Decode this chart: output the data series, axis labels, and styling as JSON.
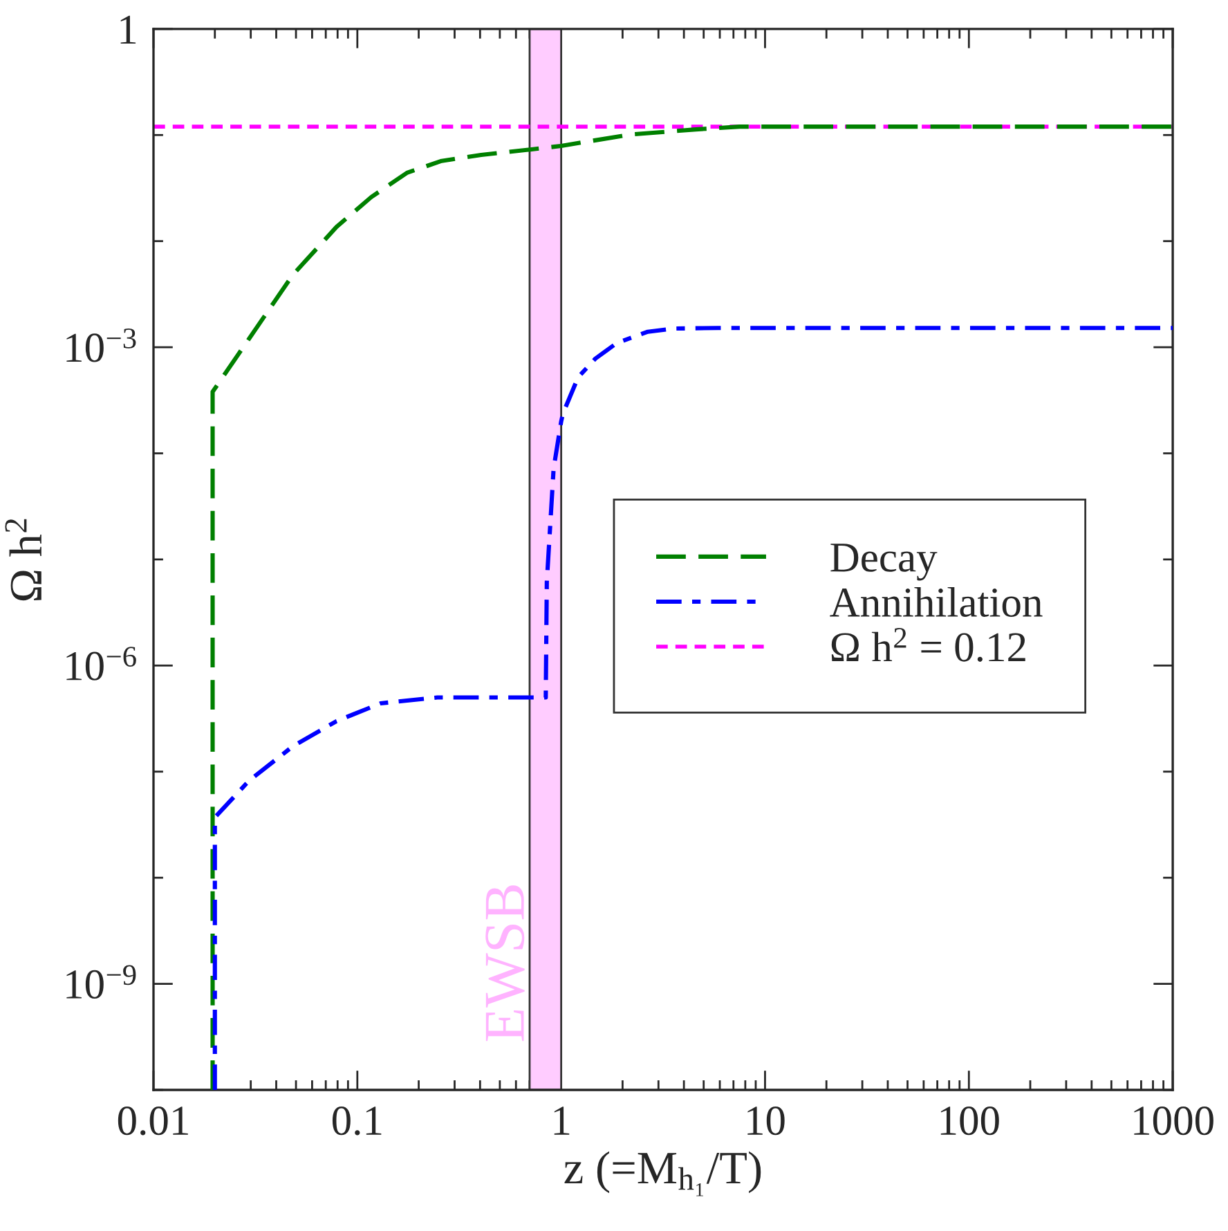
{
  "chart_data": {
    "type": "line",
    "xlabel": "z (=M$_{h₁}$/T)",
    "ylabel": "Ω h$^{2}$",
    "series": [
      {
        "name": "Decay",
        "color": "#008000",
        "line_style": "dashed",
        "x": [
          0.0195,
          0.0195,
          0.0294,
          0.0482,
          0.079,
          0.117,
          0.175,
          0.259,
          0.405,
          0.705,
          1.0,
          2.18,
          4.58,
          7.5,
          1000
        ],
        "values": [
          1e-10,
          0.00038,
          0.0012,
          0.0048,
          0.0136,
          0.026,
          0.044,
          0.057,
          0.065,
          0.073,
          0.079,
          0.101,
          0.113,
          0.12,
          0.12
        ]
      },
      {
        "name": "Annihilation",
        "color": "#0000ff",
        "line_style": "dashdot",
        "x": [
          0.02,
          0.02,
          0.0294,
          0.0482,
          0.079,
          0.13,
          0.247,
          0.84,
          0.85,
          0.918,
          1.0,
          1.02,
          1.21,
          1.47,
          1.88,
          2.66,
          3.58,
          5.87,
          1000
        ],
        "values": [
          1e-10,
          3.7e-08,
          8.2e-08,
          1.73e-07,
          2.99e-07,
          4.4e-07,
          5e-07,
          5e-07,
          6.1e-06,
          7.2e-05,
          0.0002,
          0.000237,
          0.00052,
          0.00078,
          0.0011,
          0.0014,
          0.0015,
          0.00152,
          0.00152
        ]
      }
    ],
    "ref_lines": [
      {
        "axis": "y",
        "value": 0.12,
        "label": "Ω h$^{2}$ = 0.12",
        "color": "#ff00ff",
        "line_style": "dotted"
      }
    ],
    "bands": [
      {
        "axis": "x",
        "from": 0.7,
        "to": 1,
        "label": "EWSB",
        "color": "#ffccff"
      }
    ],
    "log": "xy",
    "xlim": [
      0.01,
      1000
    ],
    "ylim": [
      1e-10,
      1
    ],
    "xticks": [
      0.01,
      0.1,
      1,
      10,
      100,
      1000
    ],
    "yticks": [
      {
        "value": 1e-10,
        "label": null
      },
      {
        "value": 1e-09,
        "label": "10$^{−9}$"
      },
      {
        "value": 1e-08,
        "label": null
      },
      {
        "value": 1e-07,
        "label": null
      },
      {
        "value": 1e-06,
        "label": "10$^{−6}$"
      },
      {
        "value": 1e-05,
        "label": null
      },
      {
        "value": 0.0001,
        "label": null
      },
      {
        "value": 0.001,
        "label": "10$^{−3}$"
      },
      {
        "value": 0.01,
        "label": null
      },
      {
        "value": 0.1,
        "label": null
      },
      {
        "value": 1,
        "label": "1"
      }
    ],
    "grid": false,
    "legend": "right"
  }
}
